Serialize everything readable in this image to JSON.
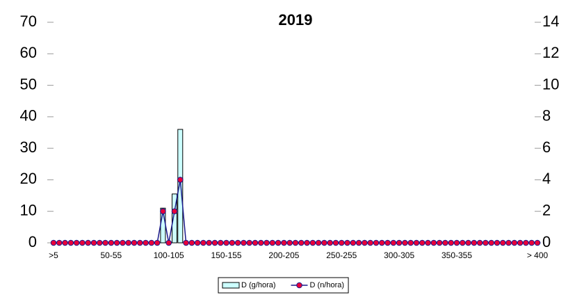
{
  "chart_data": {
    "type": "combo",
    "title": "2019",
    "categories": [
      ">5",
      null,
      null,
      null,
      null,
      null,
      null,
      null,
      null,
      null,
      "50-55",
      null,
      null,
      null,
      null,
      null,
      null,
      null,
      null,
      null,
      "100-105",
      null,
      null,
      null,
      null,
      null,
      null,
      null,
      null,
      null,
      "150-155",
      null,
      null,
      null,
      null,
      null,
      null,
      null,
      null,
      null,
      "200-205",
      null,
      null,
      null,
      null,
      null,
      null,
      null,
      null,
      null,
      "250-255",
      null,
      null,
      null,
      null,
      null,
      null,
      null,
      null,
      null,
      "300-305",
      null,
      null,
      null,
      null,
      null,
      null,
      null,
      null,
      null,
      "350-355",
      null,
      null,
      null,
      null,
      null,
      null,
      null,
      null,
      null,
      null,
      null,
      null,
      null,
      "> 400"
    ],
    "series": [
      {
        "name": "D (g/hora)",
        "type": "bar",
        "color": "#ccffff",
        "values": [
          0,
          0,
          0,
          0,
          0,
          0,
          0,
          0,
          0,
          0,
          0,
          0,
          0,
          0,
          0,
          0,
          0,
          0,
          0,
          11,
          0,
          15.5,
          36,
          0,
          0,
          0,
          0,
          0,
          0,
          0,
          0,
          0,
          0,
          0,
          0,
          0,
          0,
          0,
          0,
          0,
          0,
          0,
          0,
          0,
          0,
          0,
          0,
          0,
          0,
          0,
          0,
          0,
          0,
          0,
          0,
          0,
          0,
          0,
          0,
          0,
          0,
          0,
          0,
          0,
          0,
          0,
          0,
          0,
          0,
          0,
          0,
          0,
          0,
          0,
          0,
          0,
          0,
          0,
          0,
          0,
          0,
          0,
          0,
          0,
          0
        ]
      },
      {
        "name": "D (n/hora)",
        "type": "line",
        "axis": "y2",
        "color": "#1a1a8c",
        "marker_color": "#e8003a",
        "values": [
          0,
          0,
          0,
          0,
          0,
          0,
          0,
          0,
          0,
          0,
          0,
          0,
          0,
          0,
          0,
          0,
          0,
          0,
          0,
          2,
          0,
          2,
          4,
          0,
          0,
          0,
          0,
          0,
          0,
          0,
          0,
          0,
          0,
          0,
          0,
          0,
          0,
          0,
          0,
          0,
          0,
          0,
          0,
          0,
          0,
          0,
          0,
          0,
          0,
          0,
          0,
          0,
          0,
          0,
          0,
          0,
          0,
          0,
          0,
          0,
          0,
          0,
          0,
          0,
          0,
          0,
          0,
          0,
          0,
          0,
          0,
          0,
          0,
          0,
          0,
          0,
          0,
          0,
          0,
          0,
          0,
          0,
          0,
          0,
          0
        ]
      }
    ],
    "ylim": [
      0,
      70
    ],
    "yticks": [
      0,
      10,
      20,
      30,
      40,
      50,
      60,
      70
    ],
    "y2lim": [
      0,
      14
    ],
    "y2ticks": [
      0,
      2,
      4,
      6,
      8,
      10,
      12,
      14
    ],
    "legend": "bottom"
  }
}
